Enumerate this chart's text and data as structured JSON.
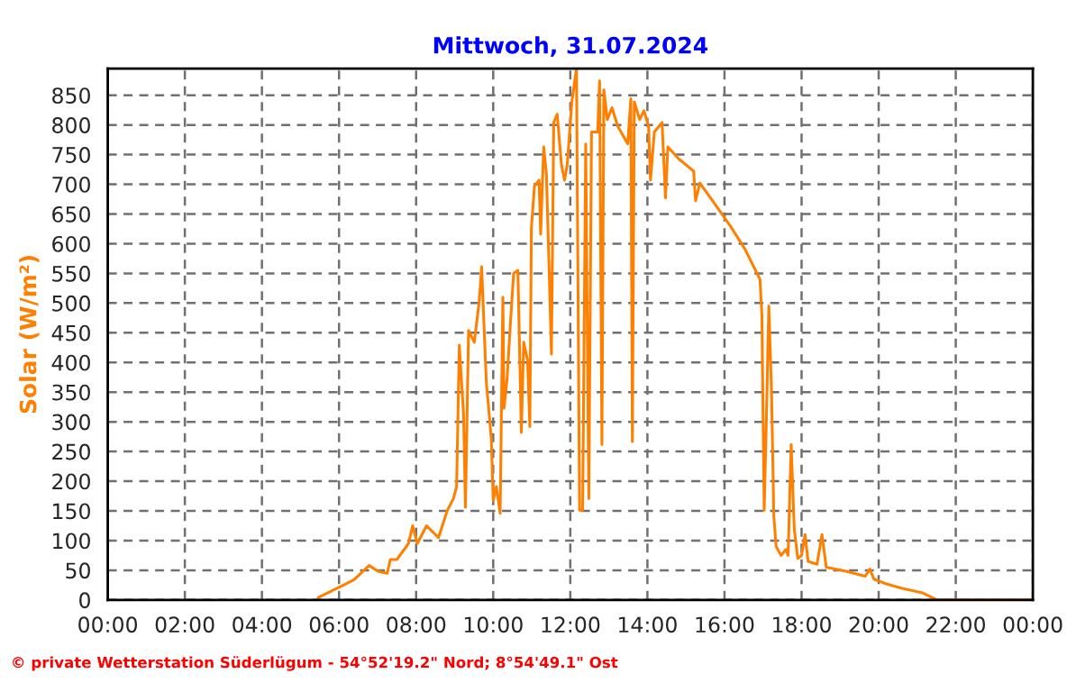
{
  "chart_data": {
    "type": "line",
    "title": "Mittwoch, 31.07.2024",
    "ylabel": "Solar (W/m²)",
    "annotations": [
      "© private Wetterstation Süderlügum - 54°52'19.2\" Nord; 8°54'49.1\" Ost"
    ],
    "xlim": [
      0,
      24
    ],
    "xticks": [
      {
        "value": 0,
        "label": "00:00"
      },
      {
        "value": 2,
        "label": "02:00"
      },
      {
        "value": 4,
        "label": "04:00"
      },
      {
        "value": 6,
        "label": "06:00"
      },
      {
        "value": 8,
        "label": "08:00"
      },
      {
        "value": 10,
        "label": "10:00"
      },
      {
        "value": 12,
        "label": "12:00"
      },
      {
        "value": 14,
        "label": "14:00"
      },
      {
        "value": 16,
        "label": "16:00"
      },
      {
        "value": 18,
        "label": "18:00"
      },
      {
        "value": 20,
        "label": "20:00"
      },
      {
        "value": 22,
        "label": "22:00"
      },
      {
        "value": 24,
        "label": "00:00"
      }
    ],
    "ylim": [
      0,
      895
    ],
    "yticks": [
      0,
      50,
      100,
      150,
      200,
      250,
      300,
      350,
      400,
      450,
      500,
      550,
      600,
      650,
      700,
      750,
      800,
      850
    ],
    "grid": true,
    "marker": "none",
    "line_style": "solid",
    "series": [
      {
        "color": "#ff8000",
        "x": [
          5.46,
          6.08,
          6.39,
          6.78,
          7.02,
          7.25,
          7.33,
          7.5,
          7.8,
          7.91,
          8.03,
          8.27,
          8.58,
          8.81,
          8.97,
          9.05,
          9.12,
          9.23,
          9.28,
          9.36,
          9.51,
          9.64,
          9.7,
          9.82,
          9.95,
          10.0,
          10.08,
          10.18,
          10.25,
          10.28,
          10.36,
          10.45,
          10.53,
          10.64,
          10.73,
          10.79,
          10.89,
          10.95,
          10.99,
          11.07,
          11.19,
          11.23,
          11.31,
          11.38,
          11.46,
          11.51,
          11.57,
          11.66,
          11.77,
          11.85,
          11.92,
          12.04,
          12.16,
          12.24,
          12.32,
          12.4,
          12.48,
          12.55,
          12.71,
          12.76,
          12.82,
          12.87,
          12.96,
          13.08,
          13.23,
          13.49,
          13.57,
          13.61,
          13.66,
          13.8,
          13.91,
          14.03,
          14.08,
          14.18,
          14.38,
          14.47,
          14.53,
          14.81,
          15.2,
          15.25,
          15.36,
          15.75,
          16.14,
          16.53,
          16.92,
          16.97,
          17.03,
          17.09,
          17.15,
          17.22,
          17.28,
          17.34,
          17.47,
          17.59,
          17.65,
          17.73,
          17.81,
          17.9,
          18.0,
          18.09,
          18.17,
          18.4,
          18.53,
          18.64,
          19.18,
          19.65,
          19.77,
          19.88,
          20.2,
          20.59,
          21.13,
          21.52,
          24
        ],
        "values": [
          4,
          24,
          34,
          58,
          48,
          45,
          68,
          68,
          95,
          125,
          95,
          125,
          105,
          151,
          171,
          191,
          429,
          313,
          156,
          454,
          434,
          505,
          561,
          368,
          272,
          167,
          191,
          146,
          510,
          323,
          373,
          470,
          550,
          555,
          282,
          434,
          404,
          292,
          626,
          697,
          707,
          616,
          763,
          717,
          535,
          414,
          804,
          818,
          733,
          707,
          733,
          839,
          895,
          151,
          151,
          768,
          171,
          788,
          788,
          874,
          262,
          859,
          809,
          829,
          798,
          768,
          844,
          267,
          839,
          809,
          824,
          798,
          707,
          788,
          804,
          677,
          763,
          743,
          722,
          672,
          702,
          667,
          631,
          591,
          540,
          480,
          151,
          313,
          495,
          353,
          141,
          90,
          75,
          85,
          75,
          262,
          120,
          70,
          75,
          110,
          65,
          60,
          110,
          55,
          48,
          40,
          52,
          35,
          27,
          20,
          12,
          0,
          0
        ]
      }
    ]
  }
}
